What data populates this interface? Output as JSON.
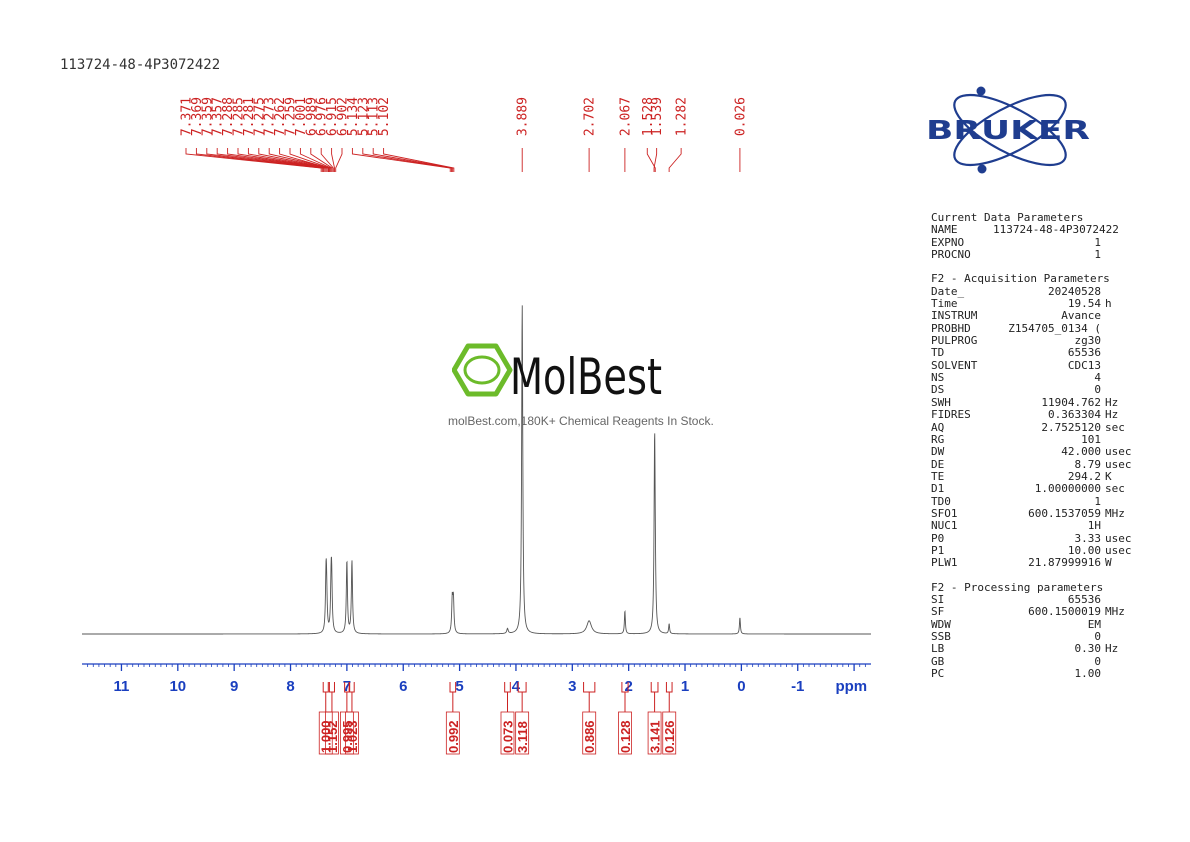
{
  "colors": {
    "peak_label": "#cc2222",
    "integral": "#cc2222",
    "axis": "#1a3fbf",
    "spectrum": "#555555",
    "bruker": "#1f3d8f",
    "molbest_green": "#6cbb2a"
  },
  "header": {
    "sample_name": "113724-48-4P3072422"
  },
  "chart_data": {
    "type": "line",
    "title": "",
    "xlabel": "ppm",
    "ylabel": "",
    "xlim": [
      11.7,
      -2.3
    ],
    "x_reversed": true,
    "ticks": [
      {
        "label": "11",
        "value": 11
      },
      {
        "label": "10",
        "value": 10
      },
      {
        "label": "9",
        "value": 9
      },
      {
        "label": "8",
        "value": 8
      },
      {
        "label": "7",
        "value": 7
      },
      {
        "label": "6",
        "value": 6
      },
      {
        "label": "5",
        "value": 5
      },
      {
        "label": "4",
        "value": 4
      },
      {
        "label": "3",
        "value": 3
      },
      {
        "label": "2",
        "value": 2
      },
      {
        "label": "1",
        "value": 1
      },
      {
        "label": "0",
        "value": 0
      },
      {
        "label": "-1",
        "value": -1
      },
      {
        "label": "ppm",
        "value": -1.95
      }
    ],
    "peaks": [
      {
        "ppm": 7.37,
        "height": 0.16,
        "width": 0.012
      },
      {
        "ppm": 7.36,
        "height": 0.1,
        "width": 0.012
      },
      {
        "ppm": 7.28,
        "height": 0.13,
        "width": 0.012
      },
      {
        "ppm": 7.27,
        "height": 0.14,
        "width": 0.012
      },
      {
        "ppm": 7.0,
        "height": 0.22,
        "width": 0.012
      },
      {
        "ppm": 6.91,
        "height": 0.22,
        "width": 0.012
      },
      {
        "ppm": 5.13,
        "height": 0.1,
        "width": 0.012
      },
      {
        "ppm": 5.11,
        "height": 0.1,
        "width": 0.012
      },
      {
        "ppm": 4.15,
        "height": 0.015,
        "width": 0.015
      },
      {
        "ppm": 3.889,
        "height": 1.0,
        "width": 0.012
      },
      {
        "ppm": 2.702,
        "height": 0.04,
        "width": 0.05
      },
      {
        "ppm": 2.067,
        "height": 0.07,
        "width": 0.01
      },
      {
        "ppm": 1.539,
        "height": 0.59,
        "width": 0.012
      },
      {
        "ppm": 1.528,
        "height": 0.05,
        "width": 0.012
      },
      {
        "ppm": 1.282,
        "height": 0.03,
        "width": 0.01
      },
      {
        "ppm": 0.026,
        "height": 0.05,
        "width": 0.01
      }
    ],
    "peak_labels": [
      {
        "text": "7.371",
        "ppm": 7.371,
        "group": 1
      },
      {
        "text": "7.369",
        "ppm": 7.369,
        "group": 1
      },
      {
        "text": "7.359",
        "ppm": 7.359,
        "group": 1
      },
      {
        "text": "7.357",
        "ppm": 7.357,
        "group": 1
      },
      {
        "text": "7.288",
        "ppm": 7.288,
        "group": 1
      },
      {
        "text": "7.285",
        "ppm": 7.285,
        "group": 1
      },
      {
        "text": "7.281",
        "ppm": 7.281,
        "group": 1
      },
      {
        "text": "7.275",
        "ppm": 7.275,
        "group": 1
      },
      {
        "text": "7.273",
        "ppm": 7.273,
        "group": 1
      },
      {
        "text": "7.262",
        "ppm": 7.262,
        "group": 2
      },
      {
        "text": "7.259",
        "ppm": 7.259,
        "group": 2
      },
      {
        "text": "7.001",
        "ppm": 7.001,
        "group": 2
      },
      {
        "text": "6.989",
        "ppm": 6.989,
        "group": 2
      },
      {
        "text": "6.976",
        "ppm": 6.976,
        "group": 2
      },
      {
        "text": "6.915",
        "ppm": 6.915,
        "group": 2
      },
      {
        "text": "6.902",
        "ppm": 6.902,
        "group": 2
      },
      {
        "text": "5.134",
        "ppm": 5.134,
        "group": 3
      },
      {
        "text": "5.123",
        "ppm": 5.123,
        "group": 3
      },
      {
        "text": "5.113",
        "ppm": 5.113,
        "group": 3
      },
      {
        "text": "5.102",
        "ppm": 5.102,
        "group": 3
      },
      {
        "text": "3.889",
        "ppm": 3.889,
        "group": 4
      },
      {
        "text": "2.702",
        "ppm": 2.702,
        "group": 5
      },
      {
        "text": "2.067",
        "ppm": 2.067,
        "group": 6
      },
      {
        "text": "1.539",
        "ppm": 1.539,
        "group": 7
      },
      {
        "text": "1.528",
        "ppm": 1.528,
        "group": 7
      },
      {
        "text": "1.282",
        "ppm": 1.282,
        "group": 8
      },
      {
        "text": "0.026",
        "ppm": 0.026,
        "group": 9
      }
    ],
    "integrals": [
      {
        "value": "1.000",
        "from": 7.42,
        "to": 7.33
      },
      {
        "value": "1.152",
        "from": 7.31,
        "to": 7.22
      },
      {
        "value": "0.995",
        "from": 7.04,
        "to": 6.96
      },
      {
        "value": "1.023",
        "from": 6.95,
        "to": 6.87
      },
      {
        "value": "0.992",
        "from": 5.17,
        "to": 5.07
      },
      {
        "value": "0.073",
        "from": 4.2,
        "to": 4.1
      },
      {
        "value": "3.118",
        "from": 3.96,
        "to": 3.82
      },
      {
        "value": "0.886",
        "from": 2.8,
        "to": 2.6
      },
      {
        "value": "0.128",
        "from": 2.12,
        "to": 2.01
      },
      {
        "value": "3.141",
        "from": 1.6,
        "to": 1.48
      },
      {
        "value": "0.126",
        "from": 1.33,
        "to": 1.23
      }
    ]
  },
  "parameters": {
    "current": {
      "title": "Current Data Parameters",
      "rows": [
        {
          "key": "NAME",
          "value": "113724-48-4P3072422",
          "unit": ""
        },
        {
          "key": "EXPNO",
          "value": "1",
          "unit": ""
        },
        {
          "key": "PROCNO",
          "value": "1",
          "unit": ""
        }
      ]
    },
    "acquisition": {
      "title": "F2 - Acquisition Parameters",
      "rows": [
        {
          "key": "Date_",
          "value": "20240528",
          "unit": ""
        },
        {
          "key": "Time",
          "value": "19.54",
          "unit": "h"
        },
        {
          "key": "INSTRUM",
          "value": "Avance",
          "unit": ""
        },
        {
          "key": "PROBHD",
          "value": "Z154705_0134 (",
          "unit": ""
        },
        {
          "key": "PULPROG",
          "value": "zg30",
          "unit": ""
        },
        {
          "key": "TD",
          "value": "65536",
          "unit": ""
        },
        {
          "key": "SOLVENT",
          "value": "CDC13",
          "unit": ""
        },
        {
          "key": "NS",
          "value": "4",
          "unit": ""
        },
        {
          "key": "DS",
          "value": "0",
          "unit": ""
        },
        {
          "key": "SWH",
          "value": "11904.762",
          "unit": "Hz"
        },
        {
          "key": "FIDRES",
          "value": "0.363304",
          "unit": "Hz"
        },
        {
          "key": "AQ",
          "value": "2.7525120",
          "unit": "sec"
        },
        {
          "key": "RG",
          "value": "101",
          "unit": ""
        },
        {
          "key": "DW",
          "value": "42.000",
          "unit": "usec"
        },
        {
          "key": "DE",
          "value": "8.79",
          "unit": "usec"
        },
        {
          "key": "TE",
          "value": "294.2",
          "unit": "K"
        },
        {
          "key": "D1",
          "value": "1.00000000",
          "unit": "sec"
        },
        {
          "key": "TD0",
          "value": "1",
          "unit": ""
        },
        {
          "key": "SFO1",
          "value": "600.1537059",
          "unit": "MHz"
        },
        {
          "key": "NUC1",
          "value": "1H",
          "unit": ""
        },
        {
          "key": "P0",
          "value": "3.33",
          "unit": "usec"
        },
        {
          "key": "P1",
          "value": "10.00",
          "unit": "usec"
        },
        {
          "key": "PLW1",
          "value": "21.87999916",
          "unit": "W"
        }
      ]
    },
    "processing": {
      "title": "F2 - Processing parameters",
      "rows": [
        {
          "key": "SI",
          "value": "65536",
          "unit": ""
        },
        {
          "key": "SF",
          "value": "600.1500019",
          "unit": "MHz"
        },
        {
          "key": "WDW",
          "value": "EM",
          "unit": ""
        },
        {
          "key": "SSB",
          "value": "0",
          "unit": ""
        },
        {
          "key": "LB",
          "value": "0.30",
          "unit": "Hz"
        },
        {
          "key": "GB",
          "value": "0",
          "unit": ""
        },
        {
          "key": "PC",
          "value": "1.00",
          "unit": ""
        }
      ]
    }
  },
  "logos": {
    "bruker_text": "BRUKER",
    "molbest_text": "MolBest",
    "molbest_tagline": "molBest.com,180K+ Chemical Reagents In Stock."
  }
}
